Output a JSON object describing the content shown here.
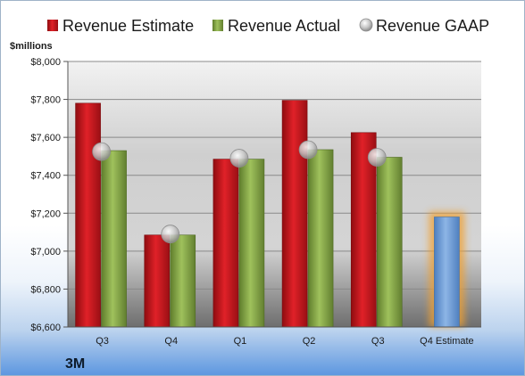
{
  "chart_data": {
    "type": "bar",
    "company": "3M",
    "y_unit": "$millions",
    "categories": [
      "Q3",
      "Q4",
      "Q1",
      "Q2",
      "Q3",
      "Q4 Estimate"
    ],
    "series": [
      {
        "name": "Revenue Estimate",
        "kind": "bar",
        "color": "#c8161d",
        "values": [
          7780,
          7085,
          7485,
          7795,
          7625,
          null
        ]
      },
      {
        "name": "Revenue Actual",
        "kind": "bar",
        "color": "#8aad4a",
        "values": [
          7530,
          7085,
          7485,
          7535,
          7495,
          null
        ]
      },
      {
        "name": "Revenue GAAP",
        "kind": "marker",
        "color": "#b8b8b8",
        "values": [
          7525,
          7090,
          7490,
          7535,
          7495,
          null
        ]
      },
      {
        "name": "Q4 Estimate",
        "kind": "bar",
        "color": "#6f9fd8",
        "glow": "#f0a030",
        "values": [
          null,
          null,
          null,
          null,
          null,
          7180
        ]
      }
    ],
    "ylim": [
      6600,
      8000
    ],
    "yticks": [
      6600,
      6800,
      7000,
      7200,
      7400,
      7600,
      7800,
      8000
    ],
    "ytick_labels": [
      "$6,600",
      "$6,800",
      "$7,000",
      "$7,200",
      "$7,400",
      "$7,600",
      "$7,800",
      "$8,000"
    ],
    "legend_position": "top",
    "grid": true
  }
}
